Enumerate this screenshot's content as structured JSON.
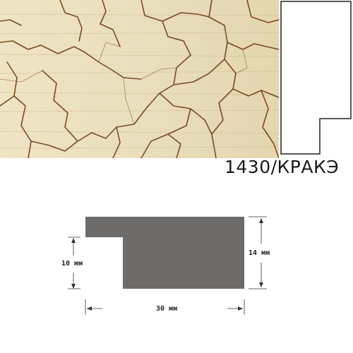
{
  "product": {
    "code": "1430/КРАКЭ",
    "texture_colors": {
      "base": "#e9ddb9",
      "crack": "#7a4a24"
    },
    "profile_fill_color": "#6e6b6b"
  },
  "dimensions": {
    "height_inner": "10 мм",
    "height_outer": "14 мм",
    "width": "30 мм"
  }
}
